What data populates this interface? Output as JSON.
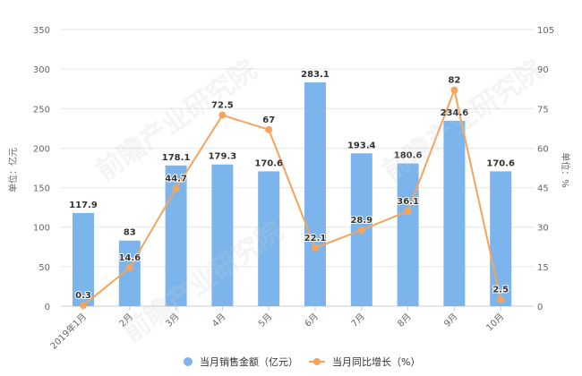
{
  "chart_data": {
    "type": "bar+line",
    "title": "",
    "categories": [
      "2019年1月",
      "2月",
      "3月",
      "4月",
      "5月",
      "6月",
      "7月",
      "8月",
      "9月",
      "10月"
    ],
    "series": [
      {
        "name": "当月销售金额（亿元）",
        "type": "bar",
        "axis": "left",
        "color": "#7cb5ec",
        "values": [
          117.9,
          83,
          178.1,
          179.3,
          170.6,
          283.1,
          193.4,
          180.6,
          234.6,
          170.6
        ]
      },
      {
        "name": "当月同比增长（%）",
        "type": "line",
        "axis": "right",
        "color": "#f7a35c",
        "values": [
          0.3,
          14.6,
          44.7,
          72.5,
          67,
          22.1,
          28.9,
          36.1,
          82,
          2.5
        ]
      }
    ],
    "ylabel": "单位：亿元",
    "y2label": "单位：%",
    "ylim": [
      0,
      350
    ],
    "y2lim": [
      0,
      105
    ],
    "yticks": [
      0,
      50,
      100,
      150,
      200,
      250,
      300,
      350
    ],
    "y2ticks": [
      0,
      15,
      30,
      45,
      60,
      75,
      90,
      105
    ],
    "grid": true,
    "legend_position": "bottom"
  },
  "legend": {
    "bar_label": "当月销售金额（亿元）",
    "line_label": "当月同比增长（%）"
  },
  "axes": {
    "left_title": "单位：亿元",
    "right_title": "单位：%"
  },
  "watermark": {
    "text": "前瞻产业研究院"
  },
  "colors": {
    "bar": "#7cb5ec",
    "line": "#f7a35c",
    "grid": "#e6e6e6"
  }
}
